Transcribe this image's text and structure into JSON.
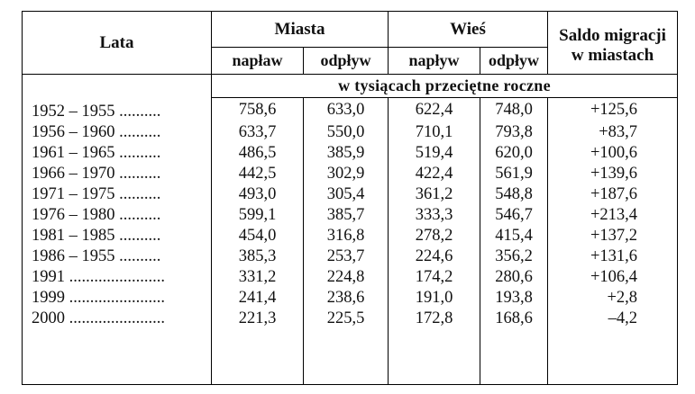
{
  "table": {
    "header": {
      "lata": "Lata",
      "miasta": "Miasta",
      "wies": "Wieś",
      "saldo_line1": "Saldo migracji",
      "saldo_line2": "w miastach",
      "naplaw": "napław",
      "odplyw_1": "odpływ",
      "naplyw": "napływ",
      "odplyw_2": "odpływ",
      "unit": "w tysiącach przeciętne roczne"
    },
    "rows": [
      {
        "lata": "1952 – 1955 ..........",
        "m_naplyw": "758,6",
        "m_odplyw": "633,0",
        "w_naplyw": "622,4",
        "w_odplyw": "748,0",
        "saldo": "+125,6"
      },
      {
        "lata": "1956 – 1960 ..........",
        "m_naplyw": "633,7",
        "m_odplyw": "550,0",
        "w_naplyw": "710,1",
        "w_odplyw": "793,8",
        "saldo": "+83,7"
      },
      {
        "lata": "1961 – 1965 ..........",
        "m_naplyw": "486,5",
        "m_odplyw": "385,9",
        "w_naplyw": "519,4",
        "w_odplyw": "620,0",
        "saldo": "+100,6"
      },
      {
        "lata": "1966 – 1970 ..........",
        "m_naplyw": "442,5",
        "m_odplyw": "302,9",
        "w_naplyw": "422,4",
        "w_odplyw": "561,9",
        "saldo": "+139,6"
      },
      {
        "lata": "1971 – 1975 ..........",
        "m_naplyw": "493,0",
        "m_odplyw": "305,4",
        "w_naplyw": "361,2",
        "w_odplyw": "548,8",
        "saldo": "+187,6"
      },
      {
        "lata": "1976 – 1980 ..........",
        "m_naplyw": "599,1",
        "m_odplyw": "385,7",
        "w_naplyw": "333,3",
        "w_odplyw": "546,7",
        "saldo": "+213,4"
      },
      {
        "lata": "1981 – 1985 ..........",
        "m_naplyw": "454,0",
        "m_odplyw": "316,8",
        "w_naplyw": "278,2",
        "w_odplyw": "415,4",
        "saldo": "+137,2"
      },
      {
        "lata": "1986 – 1955 ..........",
        "m_naplyw": "385,3",
        "m_odplyw": "253,7",
        "w_naplyw": "224,6",
        "w_odplyw": "356,2",
        "saldo": "+131,6"
      },
      {
        "lata": "1991 .......................",
        "m_naplyw": "331,2",
        "m_odplyw": "224,8",
        "w_naplyw": "174,2",
        "w_odplyw": "280,6",
        "saldo": "+106,4"
      },
      {
        "lata": "1999 .......................",
        "m_naplyw": "241,4",
        "m_odplyw": "238,6",
        "w_naplyw": "191,0",
        "w_odplyw": "193,8",
        "saldo": "+2,8"
      },
      {
        "lata": "2000 .......................",
        "m_naplyw": "221,3",
        "m_odplyw": "225,5",
        "w_naplyw": "172,8",
        "w_odplyw": "168,6",
        "saldo": "–4,2"
      }
    ]
  }
}
